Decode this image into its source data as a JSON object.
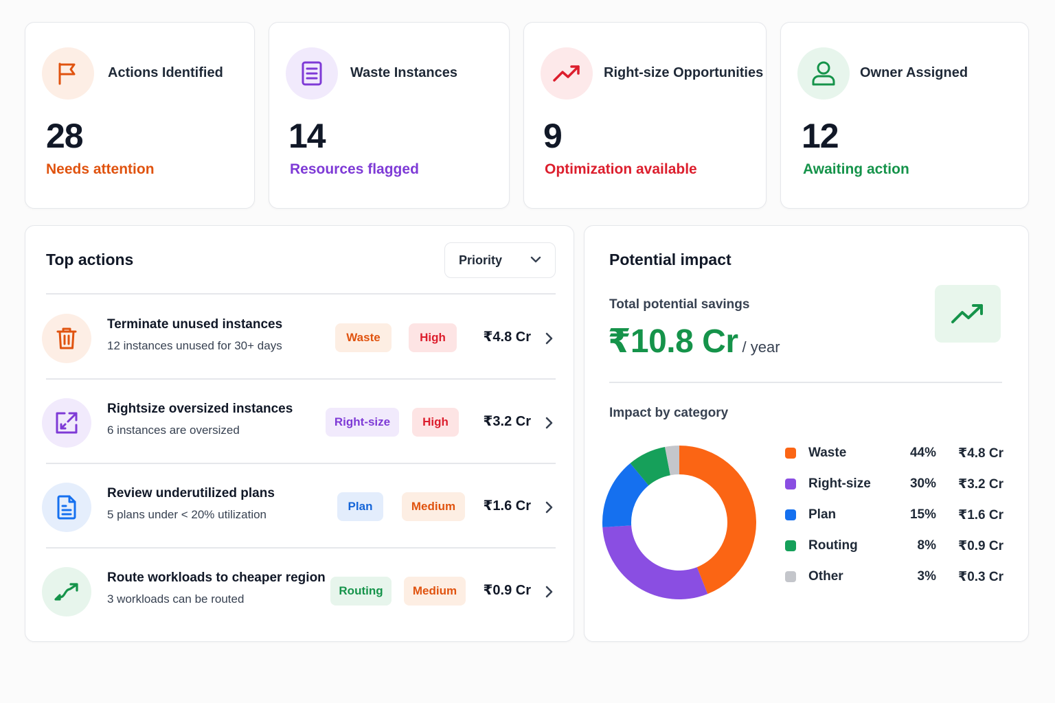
{
  "stats": [
    {
      "title": "Actions Identified",
      "value": "28",
      "subtitle": "Needs attention",
      "icon": "flag-icon",
      "color": "#e0530f",
      "bg": "#fdeee5"
    },
    {
      "title": "Waste Instances",
      "value": "14",
      "subtitle": "Resources flagged",
      "icon": "document-icon",
      "color": "#7e3ad6",
      "bg": "#f1eafc"
    },
    {
      "title": "Right-size Opportunities",
      "value": "9",
      "subtitle": "Optimization available",
      "icon": "trend-up-icon",
      "color": "#dc1e2d",
      "bg": "#fde9ea"
    },
    {
      "title": "Owner Assigned",
      "value": "12",
      "subtitle": "Awaiting action",
      "icon": "user-icon",
      "color": "#15934a",
      "bg": "#e7f5ec"
    }
  ],
  "top_actions": {
    "title": "Top actions",
    "sort": {
      "selected": "Priority"
    },
    "rows": [
      {
        "title": "Terminate unused instances",
        "subtitle": "12 instances unused for 30+ days",
        "category": "Waste",
        "priority": "High",
        "amount": "₹4.8 Cr",
        "icon": "trash-icon"
      },
      {
        "title": "Rightsize oversized instances",
        "subtitle": "6 instances are oversized",
        "category": "Right-size",
        "priority": "High",
        "amount": "₹3.2 Cr",
        "icon": "resize-icon"
      },
      {
        "title": "Review underutilized plans",
        "subtitle": "5 plans under < 20% utilization",
        "category": "Plan",
        "priority": "Medium",
        "amount": "₹1.6 Cr",
        "icon": "file-icon"
      },
      {
        "title": "Route workloads to cheaper region",
        "subtitle": "3 workloads can be routed",
        "category": "Routing",
        "priority": "Medium",
        "amount": "₹0.9 Cr",
        "icon": "route-arrow-icon"
      }
    ]
  },
  "impact": {
    "title": "Potential impact",
    "savings_label": "Total potential savings",
    "savings_value": "₹10.8 Cr",
    "savings_unit": "/ year",
    "category_title": "Impact by category",
    "icon": "trend-up-icon"
  },
  "colors": {
    "waste": "#fb6514",
    "rightsize": "#8a4ee2",
    "plan": "#1570ef",
    "routing": "#16a05a",
    "other": "#c4c6cb",
    "high_bg": "#fde4e4",
    "high_fg": "#dc1e2d",
    "medium_bg": "#fdeee3",
    "medium_fg": "#e0530f"
  },
  "chart_data": {
    "type": "pie",
    "categories": [
      "Waste",
      "Right-size",
      "Plan",
      "Routing",
      "Other"
    ],
    "values": [
      44,
      30,
      15,
      8,
      3
    ],
    "amounts": [
      "₹4.8 Cr",
      "₹3.2 Cr",
      "₹1.6 Cr",
      "₹0.9 Cr",
      "₹0.3 Cr"
    ],
    "colors": [
      "#fb6514",
      "#8a4ee2",
      "#1570ef",
      "#16a05a",
      "#c4c6cb"
    ],
    "donut": true,
    "legend": "right"
  }
}
